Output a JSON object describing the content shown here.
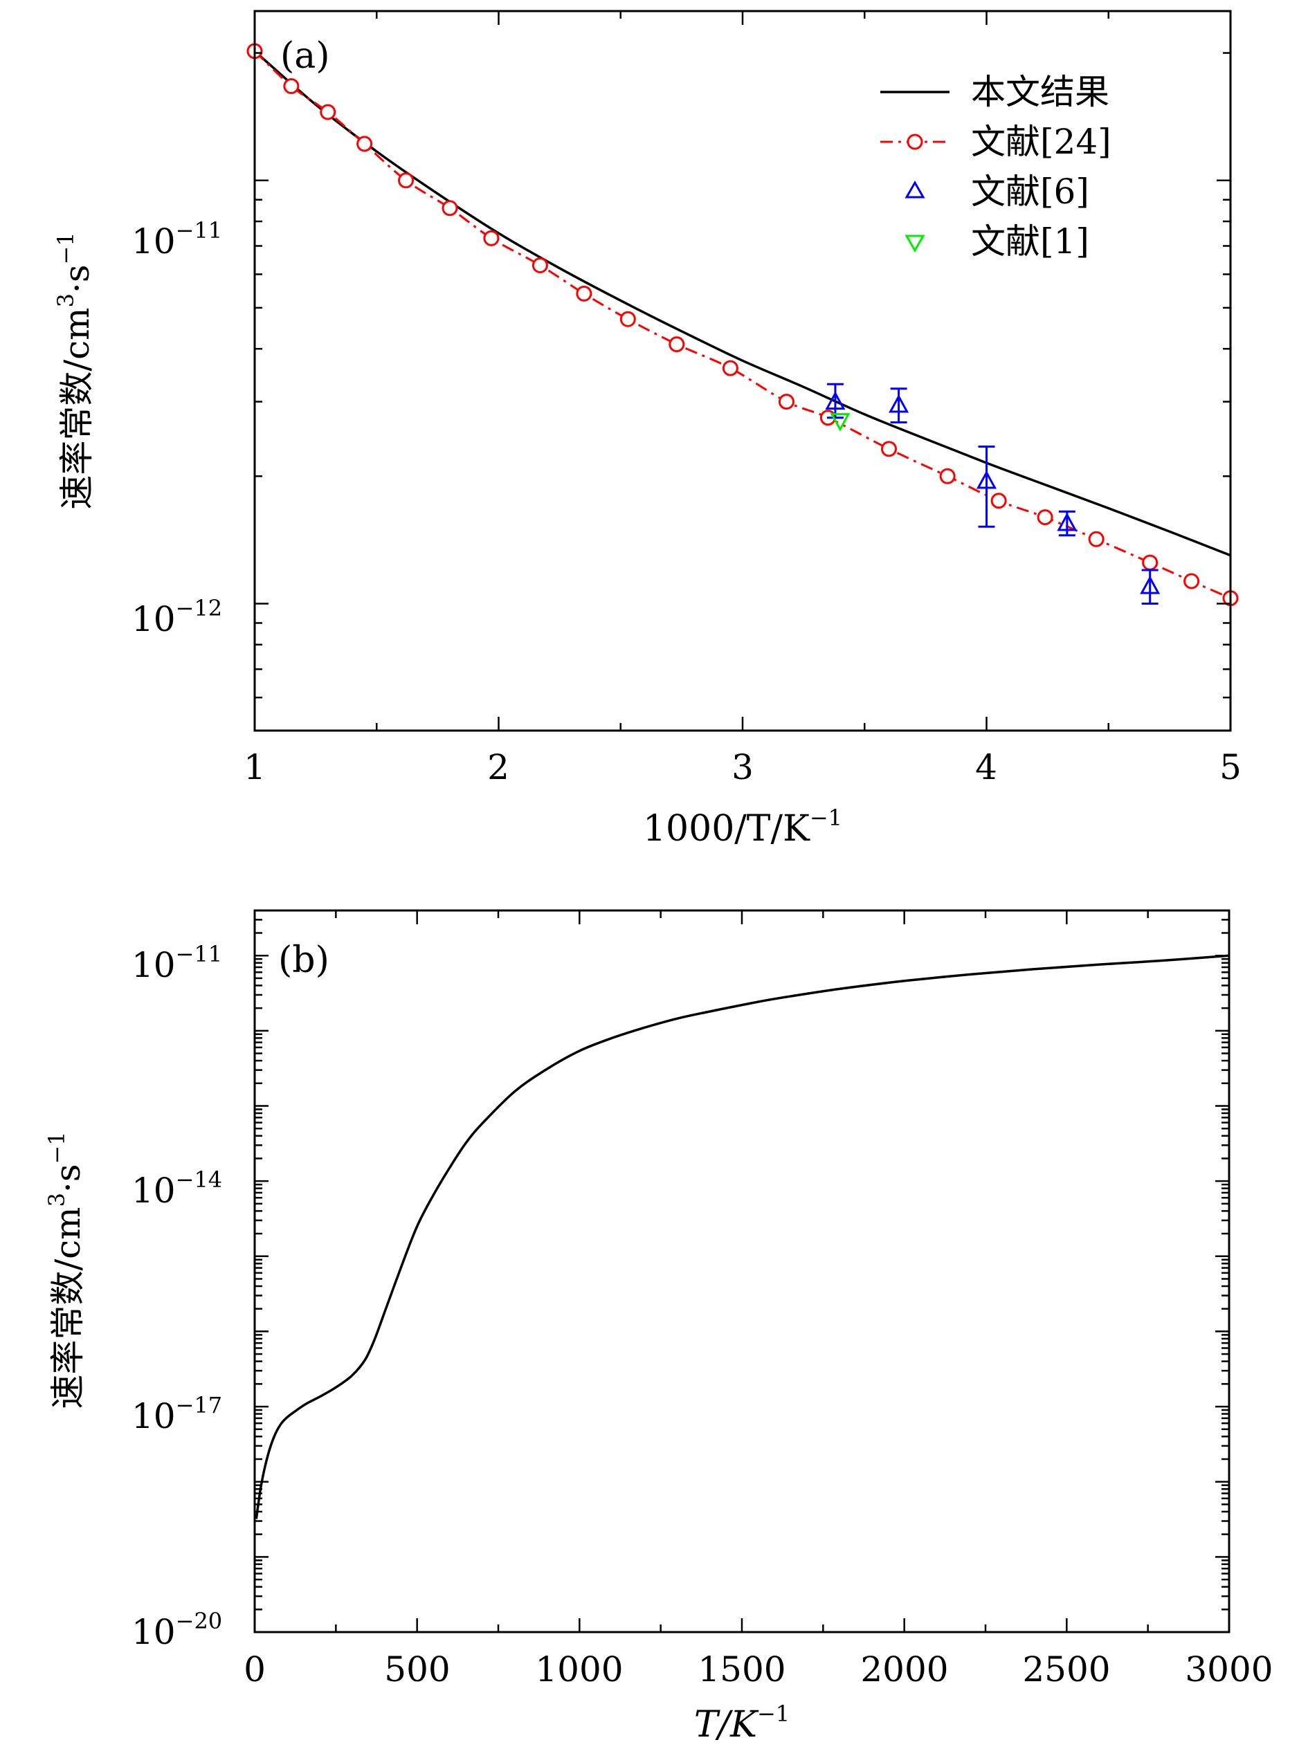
{
  "chart_data": [
    {
      "id": "a",
      "type": "line",
      "panel_label": "(a)",
      "xlabel": "1000/T/K",
      "xlabel_exp": "−1",
      "ylabel": "速率常数/cm",
      "ylabel_exp1": "3",
      "ylabel_mid": "·s",
      "ylabel_exp2": "−1",
      "xlim": [
        1,
        5
      ],
      "ylim_log10": [
        -12.3,
        -10.6
      ],
      "x_ticks": [
        "1",
        "2",
        "3",
        "4",
        "5"
      ],
      "y_tick_labels": [
        {
          "base": "10",
          "exp": "−11",
          "value": 1e-11
        },
        {
          "base": "10",
          "exp": "−12",
          "value": 1e-12
        }
      ],
      "legend_position": "top-right",
      "legend": [
        "本文结果",
        "文献[24]",
        "文献[6]",
        "文献[1]"
      ],
      "series": [
        {
          "name": "本文结果",
          "style": "solid",
          "color": "#000000",
          "x": [
            1.0,
            1.25,
            1.5,
            1.75,
            2.0,
            2.25,
            2.5,
            2.75,
            3.0,
            3.25,
            3.5,
            3.75,
            4.0,
            4.25,
            4.5,
            4.75,
            5.0
          ],
          "y": [
            2.02e-11,
            1.51e-11,
            1.17e-11,
            9.3e-12,
            7.5e-12,
            6.2e-12,
            5.2e-12,
            4.4e-12,
            3.75e-12,
            3.25e-12,
            2.8e-12,
            2.45e-12,
            2.15e-12,
            1.9e-12,
            1.68e-12,
            1.48e-12,
            1.3e-12
          ]
        },
        {
          "name": "文献[24]",
          "style": "dash-dot-circle",
          "color": "#ff0000",
          "x": [
            1.0,
            1.15,
            1.3,
            1.45,
            1.62,
            1.8,
            1.97,
            2.17,
            2.35,
            2.53,
            2.73,
            2.95,
            3.18,
            3.35,
            3.6,
            3.84,
            4.05,
            4.24,
            4.45,
            4.67,
            4.84,
            5.0
          ],
          "y": [
            2.02e-11,
            1.67e-11,
            1.45e-11,
            1.22e-11,
            1e-11,
            8.6e-12,
            7.3e-12,
            6.3e-12,
            5.4e-12,
            4.7e-12,
            4.1e-12,
            3.6e-12,
            3e-12,
            2.75e-12,
            2.32e-12,
            2e-12,
            1.75e-12,
            1.6e-12,
            1.42e-12,
            1.25e-12,
            1.13e-12,
            1.03e-12
          ]
        },
        {
          "name": "文献[6]",
          "style": "triangle-up-errorbar",
          "color": "#0000ff",
          "x": [
            3.38,
            3.64,
            4.0,
            4.33,
            4.67
          ],
          "y": [
            3e-12,
            2.95e-12,
            1.95e-12,
            1.55e-12,
            1.1e-12
          ],
          "y_err_low": [
            2.75e-12,
            2.68e-12,
            1.52e-12,
            1.45e-12,
            1e-12
          ],
          "y_err_high": [
            3.3e-12,
            3.22e-12,
            2.35e-12,
            1.65e-12,
            1.2e-12
          ]
        },
        {
          "name": "文献[1]",
          "style": "triangle-down",
          "color": "#00ff00",
          "x": [
            3.4
          ],
          "y": [
            2.7e-12
          ]
        }
      ]
    },
    {
      "id": "b",
      "type": "line",
      "panel_label": "(b)",
      "xlabel": "T/K",
      "xlabel_exp": "−1",
      "ylabel": "速率常数/cm",
      "ylabel_exp1": "3",
      "ylabel_mid": "·s",
      "ylabel_exp2": "−1",
      "xlim": [
        0,
        3000
      ],
      "ylim_log10": [
        -20,
        -10.4
      ],
      "x_ticks": [
        "0",
        "500",
        "1000",
        "1500",
        "2000",
        "2500",
        "3000"
      ],
      "y_tick_labels": [
        {
          "base": "10",
          "exp": "−11",
          "value": 1e-11
        },
        {
          "base": "10",
          "exp": "−14",
          "value": 1e-14
        },
        {
          "base": "10",
          "exp": "−17",
          "value": 1e-17
        },
        {
          "base": "10",
          "exp": "−20",
          "value": 1e-20
        }
      ],
      "series": [
        {
          "name": "本文结果",
          "style": "solid",
          "color": "#000000",
          "x": [
            5,
            20,
            40,
            60,
            80,
            100,
            130,
            160,
            200,
            250,
            300,
            340,
            370,
            400,
            450,
            500,
            550,
            600,
            650,
            700,
            800,
            900,
            1000,
            1100,
            1200,
            1300,
            1400,
            1500,
            1600,
            1800,
            2000,
            2200,
            2400,
            2600,
            2800,
            3000
          ],
          "y": [
            3.2e-19,
            9e-19,
            2.2e-18,
            4e-18,
            5.8e-18,
            7.2e-18,
            9e-18,
            1.1e-17,
            1.35e-17,
            1.8e-17,
            2.6e-17,
            4.2e-17,
            8e-17,
            1.8e-16,
            7e-16,
            2.5e-15,
            6.5e-15,
            1.5e-14,
            3.2e-14,
            5.8e-14,
            1.55e-13,
            3.1e-13,
            5.4e-13,
            8e-13,
            1.1e-12,
            1.45e-12,
            1.8e-12,
            2.2e-12,
            2.65e-12,
            3.6e-12,
            4.6e-12,
            5.6e-12,
            6.6e-12,
            7.6e-12,
            8.6e-12,
            1e-11
          ]
        }
      ]
    }
  ]
}
